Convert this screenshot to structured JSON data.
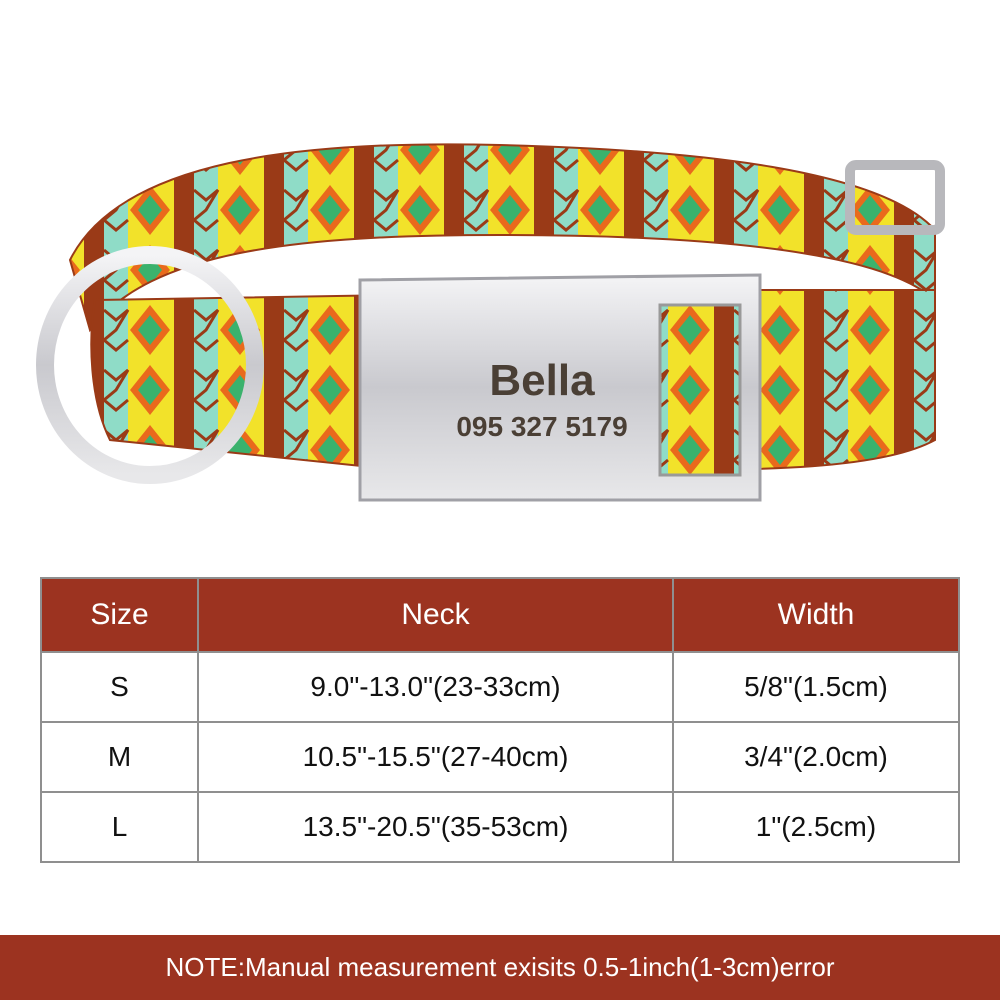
{
  "product": {
    "tag_name": "Bella",
    "tag_phone": "095 327 5179",
    "colors": {
      "brown": "#9a3a17",
      "yellow": "#f2e22a",
      "mint": "#8fdcc7",
      "green": "#3bb26d",
      "orange": "#e96a1c",
      "metal": "#cfcfd3"
    }
  },
  "table": {
    "headers": [
      "Size",
      "Neck",
      "Width"
    ],
    "rows": [
      [
        "S",
        "9.0\"-13.0\"(23-33cm)",
        "5/8\"(1.5cm)"
      ],
      [
        "M",
        "10.5\"-15.5\"(27-40cm)",
        "3/4\"(2.0cm)"
      ],
      [
        "L",
        "13.5\"-20.5\"(35-53cm)",
        "1\"(2.5cm)"
      ]
    ],
    "header_color": "#9c3320"
  },
  "note": "NOTE:Manual measurement exisits 0.5-1inch(1-3cm)error"
}
